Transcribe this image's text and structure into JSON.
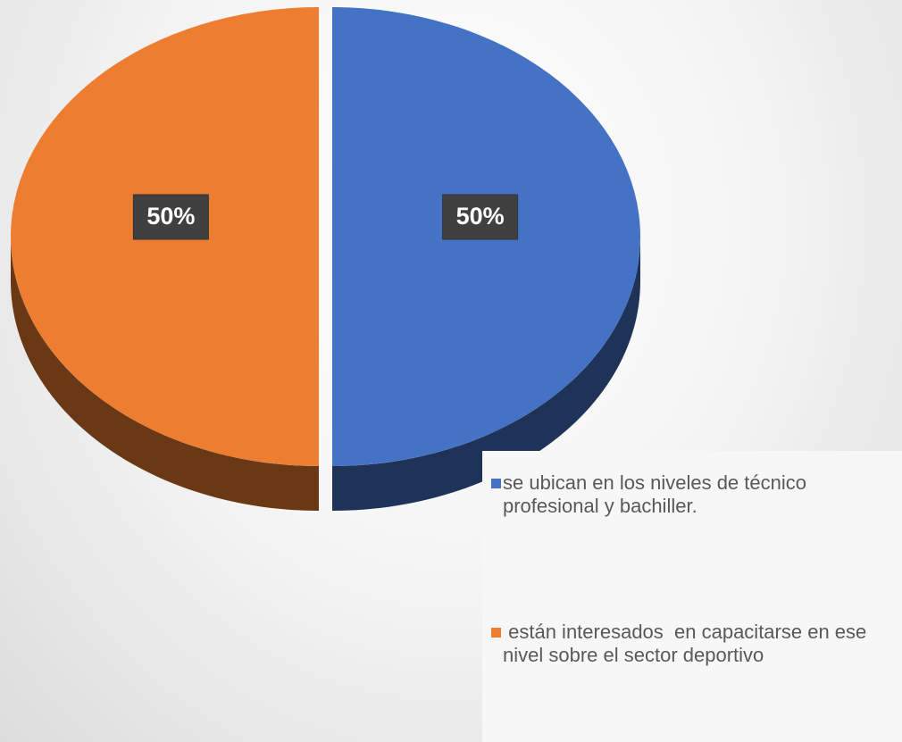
{
  "chart_data": {
    "type": "pie",
    "categories": [
      "se ubican en los niveles de técnico profesional y bachiller.",
      " están interesados  en capacitarse en ese nivel sobre el sector deportivo"
    ],
    "values": [
      50,
      50
    ],
    "value_labels": [
      "50%",
      "50%"
    ],
    "colors": [
      "#4472c4",
      "#ed7d31"
    ]
  }
}
